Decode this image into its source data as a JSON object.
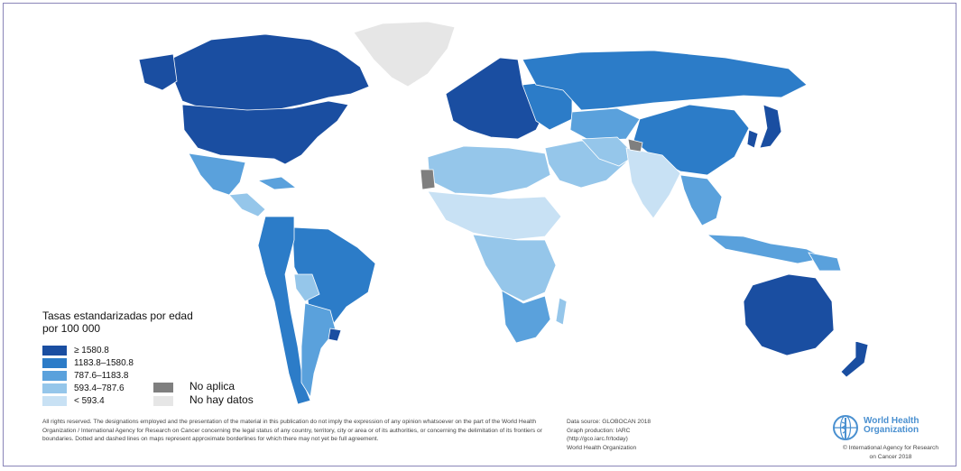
{
  "map": {
    "colors": {
      "class_1": "#1a4ea1",
      "class_2": "#2c7cc8",
      "class_3": "#5aa1dc",
      "class_4": "#95c6ea",
      "class_5": "#c8e1f4",
      "not_applicable": "#7f7f7f",
      "no_data": "#e6e6e6"
    }
  },
  "legend": {
    "title": "Tasas estandarizadas por edad por 100 000",
    "classes": [
      {
        "label": "≥ 1580.8",
        "color": "#1a4ea1"
      },
      {
        "label": "1183.8–1580.8",
        "color": "#2c7cc8"
      },
      {
        "label": "787.6–1183.8",
        "color": "#5aa1dc"
      },
      {
        "label": "593.4–787.6",
        "color": "#95c6ea"
      },
      {
        "label": "< 593.4",
        "color": "#c8e1f4"
      }
    ],
    "not_applicable": {
      "label": "No aplica",
      "color": "#7f7f7f"
    },
    "no_data": {
      "label": "No hay datos",
      "color": "#e6e6e6"
    }
  },
  "footer": {
    "disclaimer": "All rights reserved. The designations employed and the presentation of the material in this publication do not imply the expression of any opinion whatsoever on the part of the World Health Organization / International Agency for Research on Cancer concerning the legal status of any country, territory, city or area or of its authorities, or concerning the delimitation of its frontiers or boundaries. Dotted and dashed lines on maps represent approximate borderlines for which there may not yet be full agreement.",
    "source_lines": [
      "Data source: GLOBOCAN 2018",
      "Graph production: IARC",
      "(http://gco.iarc.fr/today)",
      "World Health Organization"
    ],
    "org_name_line1": "World Health",
    "org_name_line2": "Organization",
    "copyright": "© International Agency for Research on Cancer 2018",
    "logo_icon": "who-emblem-icon"
  }
}
